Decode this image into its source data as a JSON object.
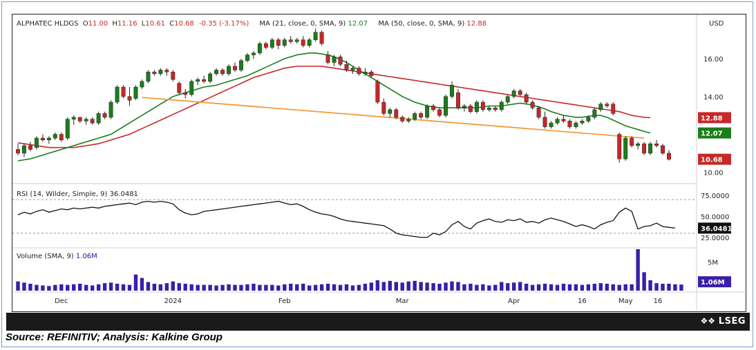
{
  "ticker": "ALPHATEC HLDGS",
  "ohlc": {
    "open_label": "O",
    "open": "11.00",
    "high_label": "H",
    "high": "11.16",
    "low_label": "L",
    "low": "10.61",
    "close_label": "C",
    "close": "10.68",
    "change": "-0.35 (-3.17%)"
  },
  "ma21": {
    "label": "MA (21, close, 0, SMA, 9)",
    "value": "12.07",
    "color": "#1b7d1b"
  },
  "ma50": {
    "label": "MA (50, close, 0, SMA, 9)",
    "value": "12.88",
    "color": "#c62828"
  },
  "currency": "USD",
  "rsi": {
    "label": "RSI (14, Wilder, Simple, 9)",
    "value": "36.0481"
  },
  "volume": {
    "label": "Volume (SMA, 9)",
    "value": "1.06M"
  },
  "x_labels": [
    "Dec",
    "2024",
    "Feb",
    "Mar",
    "Apr",
    "16",
    "May",
    "16"
  ],
  "price_ticks": [
    "16.00",
    "14.00",
    "12.00",
    "10.00"
  ],
  "rsi_ticks": [
    "75.0000",
    "50.0000",
    "25.0000"
  ],
  "vol_tick": "5M",
  "tags": {
    "ma50": "12.88",
    "ma21": "12.07",
    "price": "10.68",
    "rsi": "36.0481",
    "vol": "1.06M"
  },
  "brand": "LSEG",
  "source_note": "Source: REFINITIV; Analysis: Kalkine Group",
  "colors": {
    "up": "#1b7d1b",
    "down": "#c62828",
    "ma21": "#1b7d1b",
    "ma50": "#c62828",
    "trend": "#f39c3c",
    "volume": "#3a1fa8",
    "rsi": "#111111"
  },
  "chart_data": {
    "type": "candlestick",
    "price_ylim": [
      9.5,
      17.9
    ],
    "candles": [
      {
        "o": 11.2,
        "h": 11.5,
        "l": 10.9,
        "c": 11.0
      },
      {
        "o": 11.0,
        "h": 11.5,
        "l": 10.8,
        "c": 11.4
      },
      {
        "o": 11.4,
        "h": 11.6,
        "l": 11.1,
        "c": 11.2
      },
      {
        "o": 11.3,
        "h": 11.9,
        "l": 11.2,
        "c": 11.8
      },
      {
        "o": 11.8,
        "h": 12.0,
        "l": 11.6,
        "c": 11.7
      },
      {
        "o": 11.7,
        "h": 11.9,
        "l": 11.5,
        "c": 11.8
      },
      {
        "o": 11.8,
        "h": 12.1,
        "l": 11.7,
        "c": 12.0
      },
      {
        "o": 12.0,
        "h": 12.1,
        "l": 11.6,
        "c": 11.7
      },
      {
        "o": 11.8,
        "h": 12.9,
        "l": 11.7,
        "c": 12.8
      },
      {
        "o": 12.8,
        "h": 13.0,
        "l": 12.5,
        "c": 12.9
      },
      {
        "o": 12.9,
        "h": 12.9,
        "l": 12.6,
        "c": 12.7
      },
      {
        "o": 12.7,
        "h": 12.9,
        "l": 12.5,
        "c": 12.8
      },
      {
        "o": 12.8,
        "h": 12.9,
        "l": 12.5,
        "c": 12.6
      },
      {
        "o": 12.6,
        "h": 13.2,
        "l": 12.5,
        "c": 13.1
      },
      {
        "o": 13.1,
        "h": 13.2,
        "l": 12.8,
        "c": 12.9
      },
      {
        "o": 12.9,
        "h": 13.8,
        "l": 12.8,
        "c": 13.7
      },
      {
        "o": 13.7,
        "h": 14.6,
        "l": 13.6,
        "c": 14.5
      },
      {
        "o": 14.5,
        "h": 14.6,
        "l": 13.9,
        "c": 14.0
      },
      {
        "o": 14.0,
        "h": 14.5,
        "l": 13.5,
        "c": 13.8
      },
      {
        "o": 13.9,
        "h": 14.6,
        "l": 13.8,
        "c": 14.5
      },
      {
        "o": 14.5,
        "h": 14.9,
        "l": 14.4,
        "c": 14.8
      },
      {
        "o": 14.8,
        "h": 15.4,
        "l": 14.7,
        "c": 15.3
      },
      {
        "o": 15.3,
        "h": 15.4,
        "l": 15.1,
        "c": 15.2
      },
      {
        "o": 15.2,
        "h": 15.5,
        "l": 15.1,
        "c": 15.4
      },
      {
        "o": 15.4,
        "h": 15.5,
        "l": 15.1,
        "c": 15.3
      },
      {
        "o": 15.3,
        "h": 15.4,
        "l": 14.8,
        "c": 14.9
      },
      {
        "o": 14.7,
        "h": 14.8,
        "l": 14.1,
        "c": 14.2
      },
      {
        "o": 14.2,
        "h": 14.4,
        "l": 13.9,
        "c": 14.1
      },
      {
        "o": 14.1,
        "h": 14.9,
        "l": 14.0,
        "c": 14.8
      },
      {
        "o": 14.8,
        "h": 15.0,
        "l": 14.6,
        "c": 14.9
      },
      {
        "o": 14.9,
        "h": 15.1,
        "l": 14.7,
        "c": 14.8
      },
      {
        "o": 14.8,
        "h": 15.3,
        "l": 14.7,
        "c": 15.2
      },
      {
        "o": 15.2,
        "h": 15.5,
        "l": 15.1,
        "c": 15.4
      },
      {
        "o": 15.4,
        "h": 15.5,
        "l": 15.1,
        "c": 15.2
      },
      {
        "o": 15.2,
        "h": 15.7,
        "l": 15.1,
        "c": 15.6
      },
      {
        "o": 15.6,
        "h": 15.8,
        "l": 15.3,
        "c": 15.4
      },
      {
        "o": 15.4,
        "h": 16.0,
        "l": 15.3,
        "c": 15.9
      },
      {
        "o": 15.9,
        "h": 16.3,
        "l": 15.8,
        "c": 16.2
      },
      {
        "o": 16.2,
        "h": 16.4,
        "l": 16.0,
        "c": 16.3
      },
      {
        "o": 16.3,
        "h": 16.9,
        "l": 16.2,
        "c": 16.8
      },
      {
        "o": 16.8,
        "h": 16.9,
        "l": 16.5,
        "c": 16.6
      },
      {
        "o": 16.6,
        "h": 17.1,
        "l": 16.5,
        "c": 17.0
      },
      {
        "o": 17.0,
        "h": 17.1,
        "l": 16.5,
        "c": 16.7
      },
      {
        "o": 16.7,
        "h": 17.1,
        "l": 16.6,
        "c": 17.0
      },
      {
        "o": 17.0,
        "h": 17.2,
        "l": 16.8,
        "c": 16.9
      },
      {
        "o": 16.9,
        "h": 17.1,
        "l": 16.8,
        "c": 17.0
      },
      {
        "o": 17.0,
        "h": 17.2,
        "l": 16.6,
        "c": 16.7
      },
      {
        "o": 16.7,
        "h": 17.1,
        "l": 16.6,
        "c": 17.0
      },
      {
        "o": 17.0,
        "h": 17.6,
        "l": 16.9,
        "c": 17.4
      },
      {
        "o": 17.4,
        "h": 17.5,
        "l": 16.7,
        "c": 16.8
      },
      {
        "o": 16.2,
        "h": 16.4,
        "l": 15.7,
        "c": 15.8
      },
      {
        "o": 15.8,
        "h": 16.2,
        "l": 15.6,
        "c": 16.1
      },
      {
        "o": 16.1,
        "h": 16.2,
        "l": 15.6,
        "c": 15.7
      },
      {
        "o": 15.7,
        "h": 15.9,
        "l": 15.3,
        "c": 15.4
      },
      {
        "o": 15.4,
        "h": 15.6,
        "l": 15.2,
        "c": 15.5
      },
      {
        "o": 15.5,
        "h": 15.6,
        "l": 15.1,
        "c": 15.2
      },
      {
        "o": 15.2,
        "h": 15.5,
        "l": 15.1,
        "c": 15.3
      },
      {
        "o": 15.3,
        "h": 15.4,
        "l": 15.0,
        "c": 15.1
      },
      {
        "o": 14.8,
        "h": 14.9,
        "l": 13.6,
        "c": 13.7
      },
      {
        "o": 13.7,
        "h": 13.9,
        "l": 13.0,
        "c": 13.1
      },
      {
        "o": 13.1,
        "h": 13.4,
        "l": 12.9,
        "c": 13.3
      },
      {
        "o": 13.3,
        "h": 13.4,
        "l": 12.8,
        "c": 12.9
      },
      {
        "o": 12.9,
        "h": 13.0,
        "l": 12.6,
        "c": 12.7
      },
      {
        "o": 12.7,
        "h": 12.9,
        "l": 12.6,
        "c": 12.8
      },
      {
        "o": 12.8,
        "h": 13.2,
        "l": 12.7,
        "c": 13.1
      },
      {
        "o": 13.1,
        "h": 13.2,
        "l": 12.8,
        "c": 12.9
      },
      {
        "o": 12.9,
        "h": 13.6,
        "l": 12.8,
        "c": 13.5
      },
      {
        "o": 13.5,
        "h": 13.6,
        "l": 13.2,
        "c": 13.3
      },
      {
        "o": 13.3,
        "h": 13.4,
        "l": 12.9,
        "c": 13.0
      },
      {
        "o": 13.0,
        "h": 14.1,
        "l": 12.9,
        "c": 14.0
      },
      {
        "o": 14.0,
        "h": 14.8,
        "l": 13.9,
        "c": 14.6
      },
      {
        "o": 14.2,
        "h": 14.4,
        "l": 13.3,
        "c": 13.4
      },
      {
        "o": 13.4,
        "h": 13.6,
        "l": 13.2,
        "c": 13.5
      },
      {
        "o": 13.5,
        "h": 13.6,
        "l": 13.1,
        "c": 13.2
      },
      {
        "o": 13.2,
        "h": 13.8,
        "l": 13.1,
        "c": 13.7
      },
      {
        "o": 13.7,
        "h": 13.8,
        "l": 13.2,
        "c": 13.3
      },
      {
        "o": 13.3,
        "h": 13.5,
        "l": 13.2,
        "c": 13.4
      },
      {
        "o": 13.4,
        "h": 13.5,
        "l": 13.2,
        "c": 13.3
      },
      {
        "o": 13.3,
        "h": 13.8,
        "l": 13.2,
        "c": 13.7
      },
      {
        "o": 13.7,
        "h": 14.1,
        "l": 13.6,
        "c": 14.0
      },
      {
        "o": 14.0,
        "h": 14.4,
        "l": 13.9,
        "c": 14.3
      },
      {
        "o": 14.3,
        "h": 14.4,
        "l": 14.0,
        "c": 14.1
      },
      {
        "o": 14.1,
        "h": 14.2,
        "l": 13.6,
        "c": 13.7
      },
      {
        "o": 13.7,
        "h": 13.8,
        "l": 13.3,
        "c": 13.4
      },
      {
        "o": 13.4,
        "h": 13.5,
        "l": 12.8,
        "c": 12.9
      },
      {
        "o": 12.9,
        "h": 13.2,
        "l": 12.3,
        "c": 12.4
      },
      {
        "o": 12.4,
        "h": 12.7,
        "l": 12.3,
        "c": 12.6
      },
      {
        "o": 12.6,
        "h": 12.9,
        "l": 12.5,
        "c": 12.8
      },
      {
        "o": 12.8,
        "h": 13.0,
        "l": 12.6,
        "c": 12.7
      },
      {
        "o": 12.7,
        "h": 12.8,
        "l": 12.3,
        "c": 12.4
      },
      {
        "o": 12.4,
        "h": 12.7,
        "l": 12.3,
        "c": 12.6
      },
      {
        "o": 12.6,
        "h": 12.8,
        "l": 12.5,
        "c": 12.7
      },
      {
        "o": 12.7,
        "h": 13.0,
        "l": 12.6,
        "c": 12.9
      },
      {
        "o": 12.9,
        "h": 13.4,
        "l": 12.8,
        "c": 13.3
      },
      {
        "o": 13.3,
        "h": 13.7,
        "l": 13.2,
        "c": 13.6
      },
      {
        "o": 13.6,
        "h": 13.7,
        "l": 13.4,
        "c": 13.5
      },
      {
        "o": 13.6,
        "h": 13.7,
        "l": 13.0,
        "c": 13.1
      },
      {
        "o": 12.0,
        "h": 12.1,
        "l": 10.5,
        "c": 10.7
      },
      {
        "o": 10.7,
        "h": 11.9,
        "l": 10.6,
        "c": 11.8
      },
      {
        "o": 11.8,
        "h": 11.9,
        "l": 11.3,
        "c": 11.4
      },
      {
        "o": 11.4,
        "h": 11.6,
        "l": 11.2,
        "c": 11.5
      },
      {
        "o": 11.5,
        "h": 11.6,
        "l": 10.9,
        "c": 11.0
      },
      {
        "o": 11.0,
        "h": 11.6,
        "l": 10.9,
        "c": 11.5
      },
      {
        "o": 11.5,
        "h": 11.7,
        "l": 11.3,
        "c": 11.4
      },
      {
        "o": 11.4,
        "h": 11.5,
        "l": 10.9,
        "c": 11.0
      },
      {
        "o": 11.0,
        "h": 11.16,
        "l": 10.61,
        "c": 10.68
      }
    ],
    "ma21": [
      10.6,
      10.65,
      10.7,
      10.8,
      10.9,
      11.0,
      11.1,
      11.2,
      11.3,
      11.4,
      11.5,
      11.6,
      11.7,
      11.8,
      11.9,
      12.0,
      12.2,
      12.4,
      12.6,
      12.8,
      13.0,
      13.2,
      13.4,
      13.6,
      13.8,
      14.0,
      14.1,
      14.2,
      14.3,
      14.4,
      14.5,
      14.55,
      14.6,
      14.7,
      14.8,
      14.9,
      15.0,
      15.1,
      15.25,
      15.4,
      15.55,
      15.7,
      15.85,
      16.0,
      16.1,
      16.2,
      16.25,
      16.3,
      16.3,
      16.25,
      16.2,
      16.1,
      15.95,
      15.8,
      15.6,
      15.4,
      15.2,
      15.0,
      14.8,
      14.6,
      14.4,
      14.2,
      14.0,
      13.85,
      13.7,
      13.6,
      13.5,
      13.45,
      13.4,
      13.4,
      13.4,
      13.4,
      13.4,
      13.4,
      13.4,
      13.45,
      13.5,
      13.5,
      13.5,
      13.55,
      13.6,
      13.65,
      13.6,
      13.55,
      13.45,
      13.35,
      13.2,
      13.1,
      13.0,
      12.95,
      12.9,
      12.9,
      12.95,
      13.0,
      13.0,
      12.9,
      12.75,
      12.6,
      12.45,
      12.35,
      12.25,
      12.15,
      12.07
    ],
    "ma50": [
      11.55,
      11.5,
      11.45,
      11.4,
      11.35,
      11.3,
      11.3,
      11.3,
      11.3,
      11.3,
      11.35,
      11.4,
      11.45,
      11.5,
      11.6,
      11.7,
      11.8,
      11.9,
      12.0,
      12.15,
      12.3,
      12.45,
      12.6,
      12.75,
      12.9,
      13.05,
      13.2,
      13.35,
      13.5,
      13.65,
      13.8,
      13.95,
      14.1,
      14.25,
      14.4,
      14.55,
      14.7,
      14.85,
      15.0,
      15.1,
      15.2,
      15.3,
      15.4,
      15.5,
      15.55,
      15.6,
      15.6,
      15.6,
      15.6,
      15.6,
      15.55,
      15.5,
      15.45,
      15.4,
      15.35,
      15.3,
      15.25,
      15.2,
      15.15,
      15.1,
      15.05,
      15.0,
      14.95,
      14.9,
      14.85,
      14.8,
      14.75,
      14.7,
      14.65,
      14.6,
      14.55,
      14.5,
      14.45,
      14.4,
      14.35,
      14.3,
      14.25,
      14.2,
      14.15,
      14.1,
      14.05,
      14.0,
      13.95,
      13.9,
      13.85,
      13.8,
      13.75,
      13.7,
      13.65,
      13.6,
      13.55,
      13.5,
      13.45,
      13.4,
      13.35,
      13.3,
      13.25,
      13.2,
      13.1,
      13.0,
      12.95,
      12.9,
      12.88
    ],
    "trendline": {
      "x": [
        20,
        101
      ],
      "y": [
        13.95,
        11.8
      ]
    },
    "rsi_ylim": [
      15,
      85
    ],
    "rsi": [
      52,
      55,
      53,
      56,
      58,
      55,
      57,
      59,
      58,
      60,
      59,
      60,
      61,
      60,
      62,
      63,
      64,
      65,
      66,
      64,
      67,
      68,
      67,
      68,
      67,
      65,
      58,
      54,
      52,
      53,
      56,
      57,
      58,
      59,
      60,
      61,
      62,
      63,
      64,
      65,
      66,
      67,
      68,
      66,
      64,
      65,
      62,
      58,
      55,
      53,
      52,
      50,
      47,
      45,
      44,
      43,
      42,
      41,
      40,
      39,
      35,
      30,
      28,
      27,
      26,
      25,
      25,
      30,
      28,
      32,
      40,
      44,
      38,
      35,
      42,
      45,
      47,
      44,
      43,
      46,
      45,
      47,
      43,
      44,
      42,
      46,
      48,
      46,
      44,
      41,
      38,
      40,
      38,
      35,
      40,
      43,
      45,
      55,
      60,
      56,
      35,
      38,
      39,
      42,
      38,
      37,
      36.0481
    ],
    "vol_ylim": [
      0,
      7.2
    ],
    "volume": [
      1.6,
      1.4,
      1.2,
      1.0,
      0.9,
      0.8,
      1.0,
      1.1,
      1.0,
      1.1,
      1.2,
      1.0,
      0.9,
      1.1,
      1.3,
      1.4,
      1.2,
      1.1,
      1.0,
      2.8,
      2.2,
      1.5,
      1.2,
      1.1,
      1.3,
      1.6,
      1.3,
      1.2,
      1.1,
      1.0,
      1.0,
      1.0,
      0.9,
      1.0,
      1.1,
      1.0,
      1.0,
      1.1,
      1.2,
      1.0,
      1.0,
      1.0,
      0.9,
      1.1,
      1.2,
      1.1,
      1.2,
      0.9,
      1.0,
      1.1,
      1.2,
      1.1,
      1.0,
      1.1,
      0.9,
      1.0,
      1.2,
      1.4,
      1.8,
      1.5,
      1.7,
      1.5,
      1.4,
      1.6,
      1.7,
      1.5,
      1.4,
      1.3,
      1.2,
      1.4,
      1.6,
      1.5,
      1.1,
      1.2,
      1.0,
      1.1,
      0.9,
      1.0,
      1.5,
      1.3,
      1.4,
      1.5,
      1.2,
      1.0,
      1.1,
      1.2,
      1.1,
      1.0,
      1.2,
      1.1,
      1.1,
      1.0,
      1.1,
      1.2,
      1.3,
      1.2,
      1.1,
      1.0,
      1.1,
      1.1,
      7.2,
      3.2,
      1.8,
      1.3,
      1.2,
      1.2,
      1.1,
      1.06
    ]
  }
}
